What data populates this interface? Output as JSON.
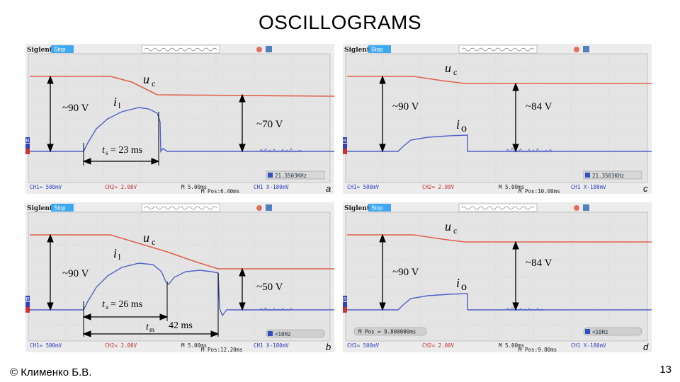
{
  "title": "OSCILLOGRAMS",
  "author": "© Клименко Б.В.",
  "page_number": "13",
  "colors": {
    "trace_u": "#e0604a",
    "trace_i": "#5060c8",
    "annot": "#000000",
    "screen_bg": "#ececec"
  },
  "scope_ui": {
    "brand": "Siglent",
    "state": "Stop",
    "ch1_label": "CH1",
    "ch2_label": "CH2",
    "ref_label": "R",
    "ch1": "CH1≈ 500mV",
    "ch2": "CH2≈ 2.00V",
    "timebase": "M 5.00ms",
    "trigger": "CH1 X-180mV"
  },
  "scopes": [
    {
      "panel": "a",
      "u_label": "u",
      "u_sub": "c",
      "i_label": "i",
      "i_sub": "l",
      "v_left": "~90 V",
      "v_right": "~70 V",
      "t_label": "t",
      "t_sub": "s",
      "t_value": "= 23 ms",
      "freq": "21.3503KHz",
      "mpos": "M Pos:6.40ms"
    },
    {
      "panel": "b",
      "u_label": "u",
      "u_sub": "c",
      "i_label": "i",
      "i_sub": "l",
      "v_left": "~90 V",
      "v_right": "~50 V",
      "t_label": "t",
      "t_sub": "a",
      "t_value": "= 26 ms",
      "tm_label": "t",
      "tm_sub": "m",
      "tm_value": "42 ms",
      "freq": "<10Hz",
      "mpos": "M Pos:12.20ms"
    },
    {
      "panel": "c",
      "u_label": "u",
      "u_sub": "c",
      "i_label": "i",
      "i_sub": "o",
      "v_left": "~90 V",
      "v_right": "~84 V",
      "freq": "21.3503KHz",
      "mpos": "M Pos:10.00ms"
    },
    {
      "panel": "d",
      "u_label": "u",
      "u_sub": "c",
      "i_label": "i",
      "i_sub": "o",
      "v_left": "~90 V",
      "v_right": "~84 V",
      "freq": "<10Hz",
      "mpos": "M Pos:9.80ms",
      "mpos_box": "M Pos = 9.800000ms"
    }
  ]
}
